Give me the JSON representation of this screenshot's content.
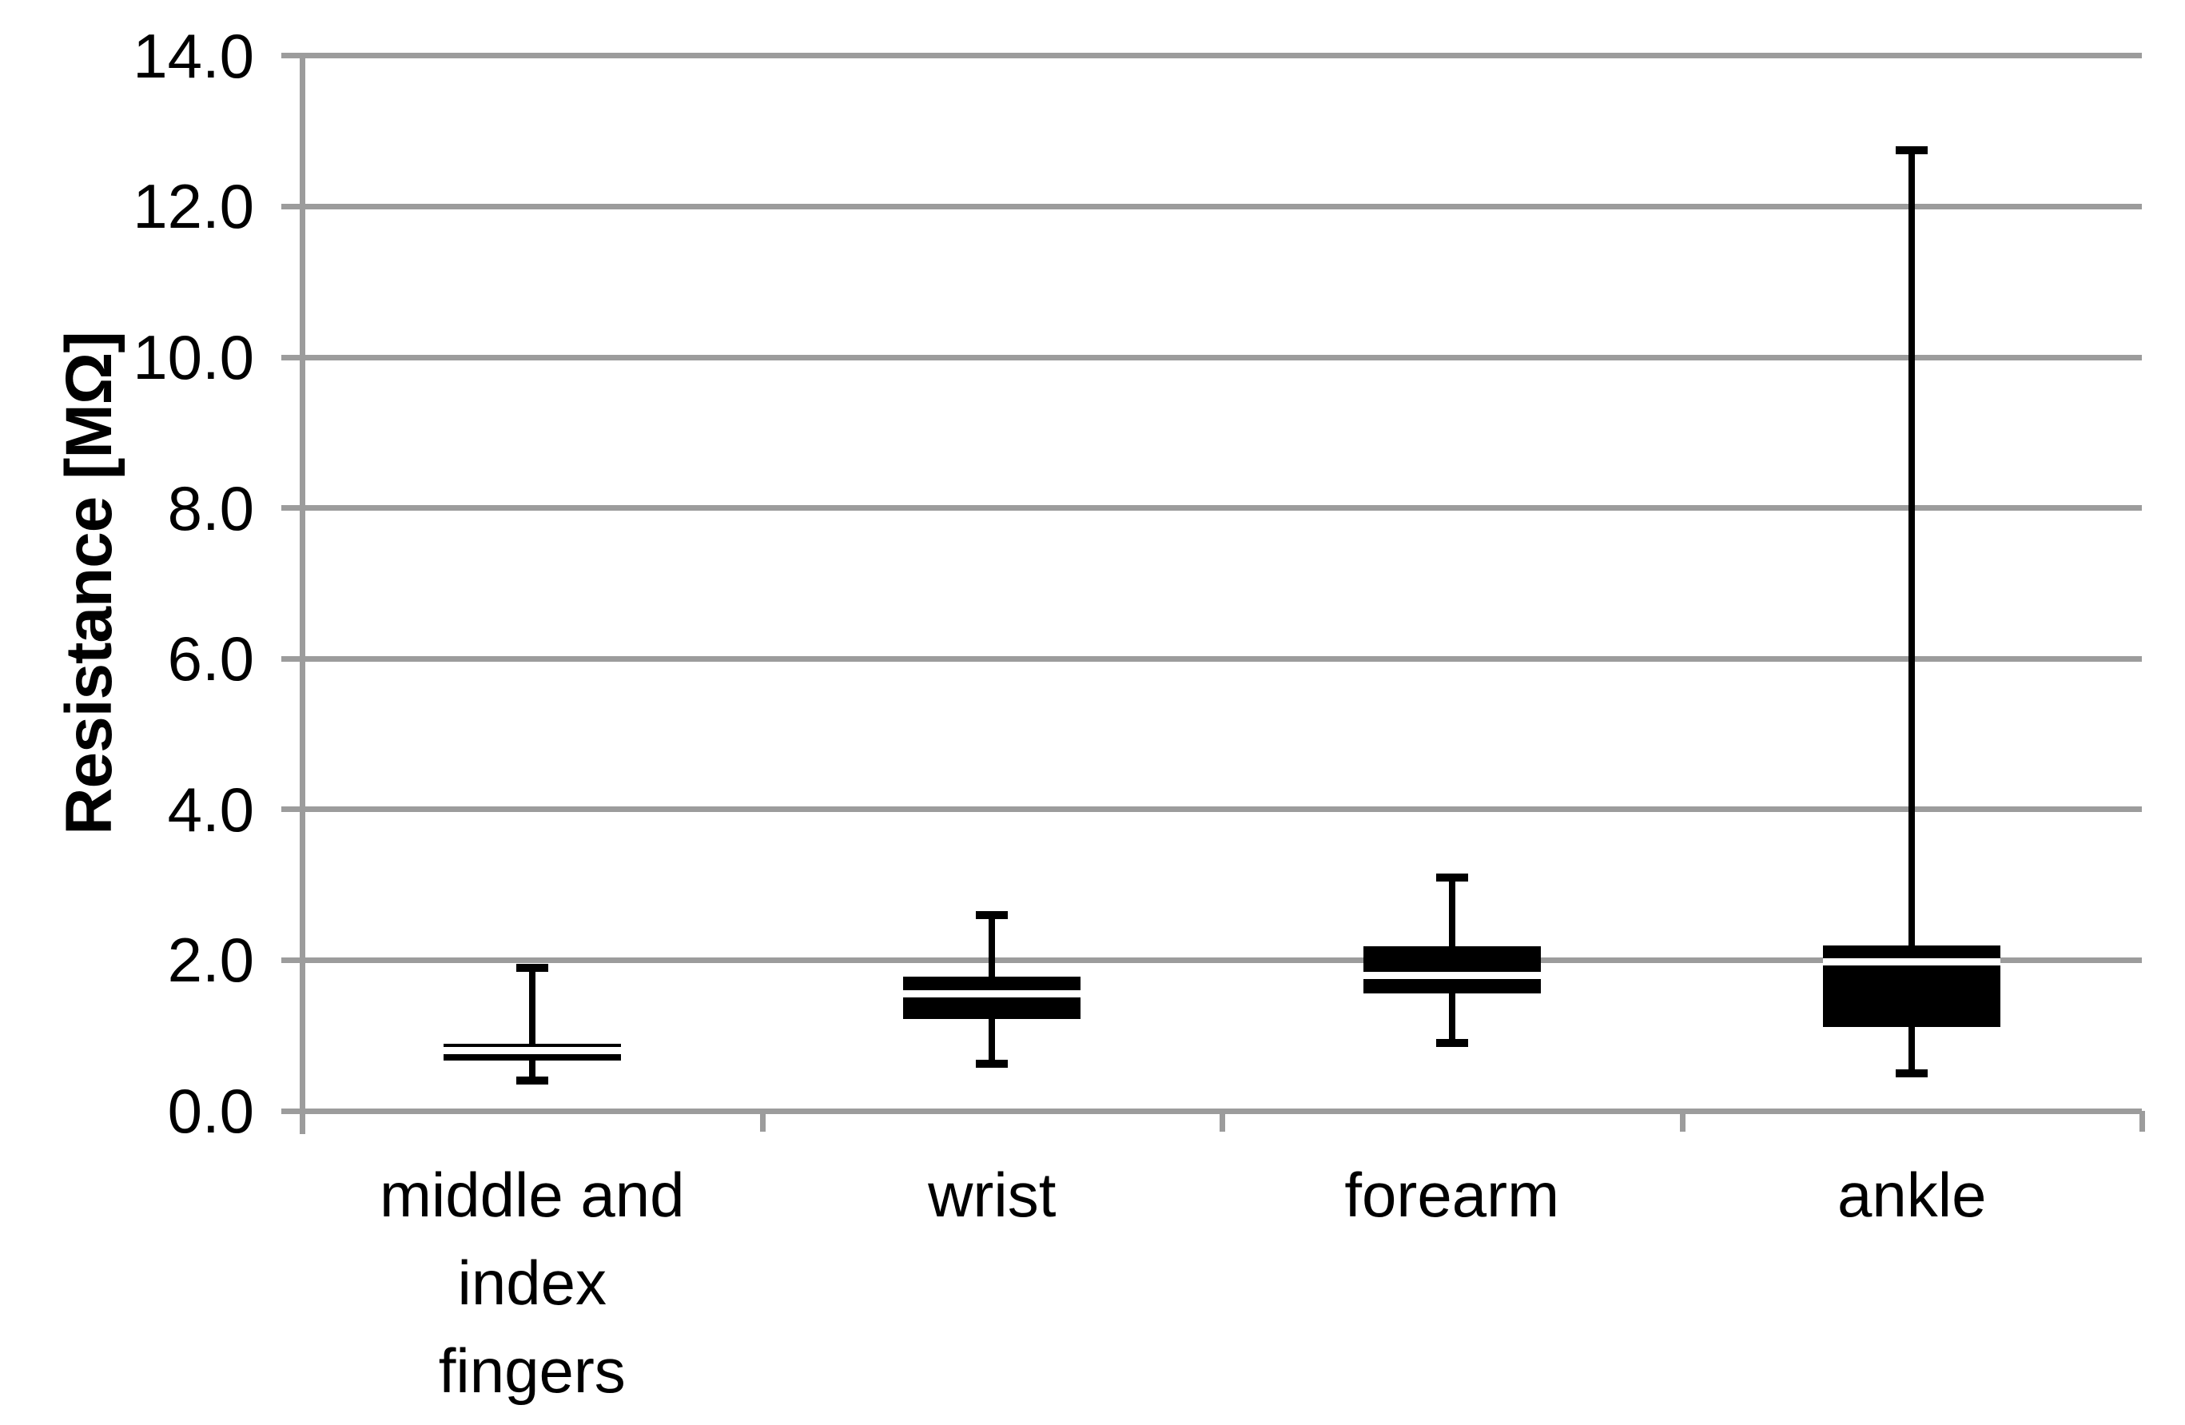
{
  "chart": {
    "y_axis": {
      "title": "Resistance [MΩ]",
      "tick_labels": [
        "14.0",
        "12.0",
        "10.0",
        "8.0",
        "6.0",
        "4.0",
        "2.0",
        "0.0"
      ],
      "min": 0,
      "max": 14,
      "step": 2
    },
    "x_axis": {
      "category_label_lines": [
        [
          "middle and",
          "index",
          "fingers"
        ],
        [
          "wrist"
        ],
        [
          "forearm"
        ],
        [
          "ankle"
        ]
      ]
    }
  },
  "chart_data": {
    "type": "boxplot",
    "title": "",
    "xlabel": "",
    "ylabel": "Resistance [MΩ]",
    "ylim": [
      0,
      14
    ],
    "ytick_interval": 2,
    "grid": "horizontal",
    "legend": "none",
    "categories": [
      "middle and index fingers",
      "wrist",
      "forearm",
      "ankle"
    ],
    "series": [
      {
        "category": "middle and index fingers",
        "whisker_low": 0.4,
        "q1": 0.67,
        "median": 0.8,
        "q3": 0.89,
        "whisker_high": 1.9
      },
      {
        "category": "wrist",
        "whisker_low": 0.63,
        "q1": 1.22,
        "median": 1.55,
        "q3": 1.78,
        "whisker_high": 2.6
      },
      {
        "category": "forearm",
        "whisker_low": 0.9,
        "q1": 1.56,
        "median": 1.8,
        "q3": 2.18,
        "whisker_high": 3.1
      },
      {
        "category": "ankle",
        "whisker_low": 0.5,
        "q1": 1.11,
        "median": 1.98,
        "q3": 2.2,
        "whisker_high": 12.75
      }
    ],
    "colors": {
      "box_fill": "#000000",
      "median_line": "#ffffff",
      "whisker": "#000000",
      "gridline": "#9c9c9c",
      "axis_line": "#9c9c9c",
      "text": "#000000",
      "background": "#ffffff"
    }
  }
}
